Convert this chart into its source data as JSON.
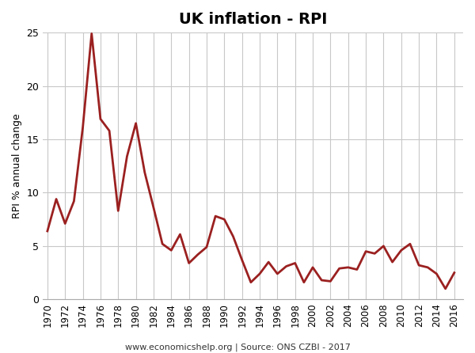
{
  "title": "UK inflation - RPI",
  "ylabel": "RPI % annual change",
  "footer": "www.economicshelp.org | Source: ONS CZBI - 2017",
  "line_color": "#9B2020",
  "line_width": 2.0,
  "background_color": "#ffffff",
  "grid_color": "#c8c8c8",
  "ylim": [
    0,
    25
  ],
  "yticks": [
    0,
    5,
    10,
    15,
    20,
    25
  ],
  "years": [
    1970,
    1971,
    1972,
    1973,
    1974,
    1975,
    1976,
    1977,
    1978,
    1979,
    1980,
    1981,
    1982,
    1983,
    1984,
    1985,
    1986,
    1987,
    1988,
    1989,
    1990,
    1991,
    1992,
    1993,
    1994,
    1995,
    1996,
    1997,
    1998,
    1999,
    2000,
    2001,
    2002,
    2003,
    2004,
    2005,
    2006,
    2007,
    2008,
    2009,
    2010,
    2011,
    2012,
    2013,
    2014,
    2015,
    2016
  ],
  "values": [
    6.4,
    9.4,
    7.1,
    9.2,
    16.1,
    24.9,
    16.9,
    15.8,
    8.3,
    13.4,
    16.5,
    11.9,
    8.6,
    5.2,
    4.6,
    6.1,
    3.4,
    4.2,
    4.9,
    7.8,
    7.5,
    5.9,
    3.7,
    1.6,
    2.4,
    3.5,
    2.4,
    3.1,
    3.4,
    1.6,
    3.0,
    1.8,
    1.7,
    2.9,
    3.0,
    2.8,
    4.5,
    4.3,
    5.0,
    3.5,
    4.6,
    5.2,
    3.2,
    3.0,
    2.4,
    1.0,
    2.5
  ],
  "xtick_years": [
    1970,
    1972,
    1974,
    1976,
    1978,
    1980,
    1982,
    1984,
    1986,
    1988,
    1990,
    1992,
    1994,
    1996,
    1998,
    2000,
    2002,
    2004,
    2006,
    2008,
    2010,
    2012,
    2014,
    2016
  ],
  "xlim": [
    1969.5,
    2017.0
  ]
}
